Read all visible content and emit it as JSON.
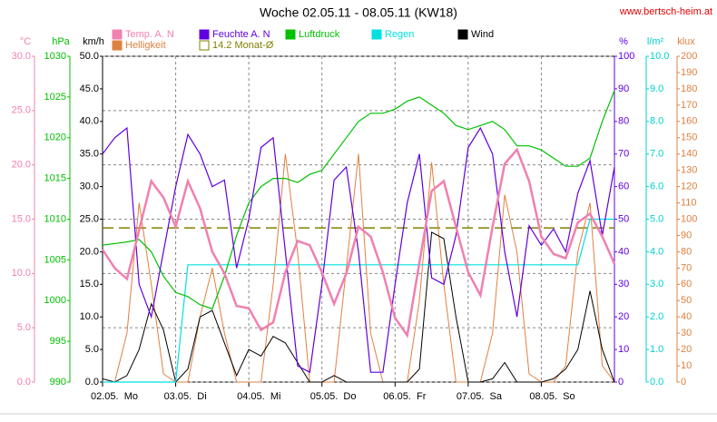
{
  "chart_data": {
    "type": "line",
    "title": "Woche 02.05.11 - 08.05.11 (KW18)",
    "source": "www.bertsch-heim.at",
    "xlim": [
      0,
      168
    ],
    "xticks": [
      {
        "value": 0,
        "label": "02.05.  Mo"
      },
      {
        "value": 24,
        "label": "03.05.  Di"
      },
      {
        "value": 48,
        "label": "04.05.  Mi"
      },
      {
        "value": 72,
        "label": "05.05.  Do"
      },
      {
        "value": 96,
        "label": "06.05.  Fr"
      },
      {
        "value": 120,
        "label": "07.05.  Sa"
      },
      {
        "value": 144,
        "label": "08.05.  So"
      }
    ],
    "x": [
      0,
      4,
      8,
      12,
      16,
      20,
      24,
      28,
      32,
      36,
      40,
      44,
      48,
      52,
      56,
      60,
      64,
      68,
      72,
      76,
      80,
      84,
      88,
      92,
      96,
      100,
      104,
      108,
      112,
      116,
      120,
      124,
      128,
      132,
      136,
      140,
      144,
      148,
      152,
      156,
      160,
      164,
      168
    ],
    "grid": true,
    "axes": [
      {
        "unit": "°C",
        "color": "#f080b0",
        "side": "left",
        "lim": [
          0,
          30
        ],
        "ticks": [
          {
            "value": 0,
            "label": "0.0"
          },
          {
            "value": 5,
            "label": "5.0"
          },
          {
            "value": 10,
            "label": "10.0"
          },
          {
            "value": 15,
            "label": "15.0"
          },
          {
            "value": 20,
            "label": "20.0"
          },
          {
            "value": 25,
            "label": "25.0"
          },
          {
            "value": 30,
            "label": "30.0"
          }
        ]
      },
      {
        "unit": "hPa",
        "color": "#00c000",
        "side": "left",
        "lim": [
          990,
          1030
        ],
        "ticks": [
          990,
          995,
          1000,
          1005,
          1010,
          1015,
          1020,
          1025,
          1030
        ]
      },
      {
        "unit": "km/h",
        "color": "#000000",
        "side": "left",
        "lim": [
          0,
          50
        ],
        "ticks": [
          {
            "value": 0,
            "label": "0.0"
          },
          {
            "value": 5,
            "label": "5.0"
          },
          {
            "value": 10,
            "label": "10.0"
          },
          {
            "value": 15,
            "label": "15.0"
          },
          {
            "value": 20,
            "label": "20.0"
          },
          {
            "value": 25,
            "label": "25.0"
          },
          {
            "value": 30,
            "label": "30.0"
          },
          {
            "value": 35,
            "label": "35.0"
          },
          {
            "value": 40,
            "label": "40.0"
          },
          {
            "value": 45,
            "label": "45.0"
          },
          {
            "value": 50,
            "label": "50.0"
          }
        ]
      },
      {
        "unit": "%",
        "color": "#6000e0",
        "side": "right",
        "lim": [
          0,
          100
        ],
        "ticks": [
          0,
          10,
          20,
          30,
          40,
          50,
          60,
          70,
          80,
          90,
          100
        ]
      },
      {
        "unit": "l/m²",
        "color": "#00d0d0",
        "side": "right",
        "lim": [
          0,
          10
        ],
        "ticks": [
          {
            "value": 0,
            "label": "0.0"
          },
          {
            "value": 1,
            "label": "1.0"
          },
          {
            "value": 2,
            "label": "2.0"
          },
          {
            "value": 3,
            "label": "3.0"
          },
          {
            "value": 4,
            "label": "4.0"
          },
          {
            "value": 5,
            "label": "5.0"
          },
          {
            "value": 6,
            "label": "6.0"
          },
          {
            "value": 7,
            "label": "7.0"
          },
          {
            "value": 8,
            "label": "8.0"
          },
          {
            "value": 9,
            "label": "9.0"
          },
          {
            "value": 10,
            "label": "10.0"
          }
        ]
      },
      {
        "unit": "klux",
        "color": "#e08040",
        "side": "right",
        "lim": [
          0,
          200
        ],
        "ticks": [
          0,
          10,
          20,
          30,
          40,
          50,
          60,
          70,
          80,
          90,
          100,
          110,
          120,
          130,
          140,
          150,
          160,
          170,
          180,
          190,
          200
        ]
      }
    ],
    "series": [
      {
        "name": "Temp. A. N",
        "color": "#f080b0",
        "axis": 0,
        "width": 2.5,
        "values": [
          12.2,
          10.5,
          9.5,
          14,
          18.5,
          17,
          14.3,
          18.5,
          16,
          12,
          10,
          7,
          6.8,
          4.8,
          5.5,
          10.1,
          13,
          12.6,
          10.1,
          7.2,
          10,
          14.3,
          13.4,
          10.1,
          5.9,
          4.3,
          11,
          17.6,
          18.5,
          14.3,
          10.1,
          8,
          14.3,
          20.1,
          21.4,
          18.5,
          13.4,
          11.8,
          11.4,
          14.7,
          15.5,
          13.4,
          10.9
        ]
      },
      {
        "name": "Feuchte A. N",
        "color": "#6000e0",
        "axis": 3,
        "width": 1.2,
        "values": [
          70,
          75,
          78,
          30,
          20,
          40,
          60,
          76,
          70,
          60,
          62,
          35,
          50,
          72,
          75,
          40,
          5,
          3,
          30,
          62,
          66,
          40,
          3,
          3,
          30,
          55,
          70,
          32,
          30,
          45,
          72,
          78,
          70,
          40,
          20,
          48,
          42,
          47,
          40,
          58,
          68,
          45,
          66
        ]
      },
      {
        "name": "Luftdruck",
        "color": "#00c000",
        "axis": 1,
        "width": 1.2,
        "values": [
          1006.8,
          1007,
          1007.2,
          1007.5,
          1006,
          1003,
          1001,
          1000.5,
          999.5,
          999,
          1003,
          1008,
          1012,
          1014,
          1015,
          1015,
          1014.5,
          1015.5,
          1016,
          1018,
          1020,
          1022,
          1023,
          1023,
          1023.5,
          1024.5,
          1025,
          1024,
          1023,
          1021.5,
          1021,
          1021.5,
          1022,
          1021,
          1019,
          1019,
          1018.5,
          1017.5,
          1016.5,
          1016.5,
          1017.5,
          1022,
          1025.8
        ]
      },
      {
        "name": "Regen",
        "color": "#00e0e0",
        "axis": 4,
        "width": 1.2,
        "values": [
          0,
          0,
          0,
          0,
          0,
          0,
          0,
          3.6,
          3.6,
          3.6,
          3.6,
          3.6,
          3.6,
          3.6,
          3.6,
          3.6,
          3.6,
          3.6,
          3.6,
          3.6,
          3.6,
          3.6,
          3.6,
          3.6,
          3.6,
          3.6,
          3.6,
          3.6,
          3.6,
          3.6,
          3.6,
          3.6,
          3.6,
          3.6,
          3.6,
          3.6,
          3.6,
          3.6,
          3.6,
          3.6,
          5,
          5,
          5
        ]
      },
      {
        "name": "Wind",
        "color": "#000000",
        "axis": 2,
        "width": 1,
        "values": [
          0.5,
          0,
          1,
          5,
          12,
          8,
          0,
          2,
          10,
          11,
          6,
          1,
          5,
          4,
          7,
          6,
          3,
          0,
          0,
          1,
          0,
          0,
          0,
          0,
          0,
          0,
          2,
          23,
          22,
          10,
          0,
          0,
          0.5,
          3,
          0,
          0,
          0,
          0.5,
          2,
          5,
          14,
          5,
          0
        ]
      },
      {
        "name": "Helligkeit",
        "color": "#e08040",
        "axis": 5,
        "width": 1,
        "values": [
          0,
          0,
          30,
          110,
          60,
          5,
          0,
          0,
          40,
          70,
          30,
          0,
          0,
          0,
          60,
          140,
          80,
          0,
          0,
          0,
          70,
          140,
          30,
          0,
          0,
          0,
          50,
          135,
          60,
          0,
          0,
          0,
          30,
          115,
          80,
          5,
          0,
          0,
          10,
          80,
          110,
          10,
          0
        ]
      }
    ],
    "reference": {
      "name": "14.2 Monat-Ø",
      "value": 14.2,
      "axis": 0,
      "color": "#808000"
    }
  }
}
